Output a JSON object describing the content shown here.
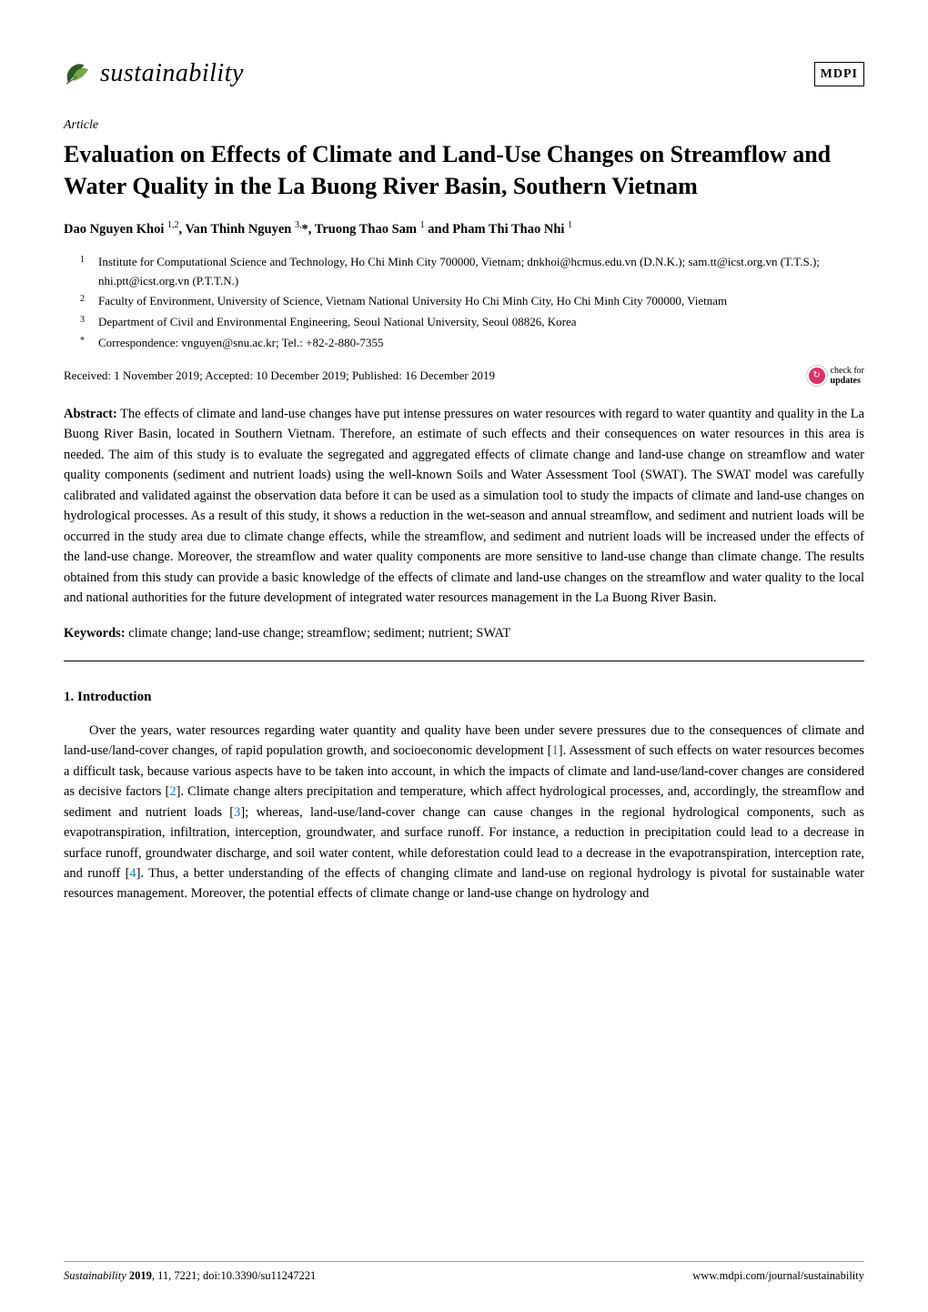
{
  "header": {
    "journal_name": "sustainability",
    "publisher_logo": "MDPI"
  },
  "article": {
    "type": "Article",
    "title": "Evaluation on Effects of Climate and Land-Use Changes on Streamflow and Water Quality in the La Buong River Basin, Southern Vietnam",
    "authors_html": "Dao Nguyen Khoi <sup>1,2</sup>, Van Thinh Nguyen <sup>3,</sup>*, Truong Thao Sam <sup>1</sup> and Pham Thi Thao Nhi <sup>1</sup>"
  },
  "affiliations": [
    {
      "num": "1",
      "text": "Institute for Computational Science and Technology, Ho Chi Minh City 700000, Vietnam; dnkhoi@hcmus.edu.vn (D.N.K.); sam.tt@icst.org.vn (T.T.S.); nhi.ptt@icst.org.vn (P.T.T.N.)"
    },
    {
      "num": "2",
      "text": "Faculty of Environment, University of Science, Vietnam National University Ho Chi Minh City, Ho Chi Minh City 700000, Vietnam"
    },
    {
      "num": "3",
      "text": "Department of Civil and Environmental Engineering, Seoul National University, Seoul 08826, Korea"
    },
    {
      "num": "*",
      "text": "Correspondence: vnguyen@snu.ac.kr; Tel.: +82-2-880-7355"
    }
  ],
  "dates": "Received: 1 November 2019; Accepted: 10 December 2019; Published: 16 December 2019",
  "check_updates": {
    "line1": "check for",
    "line2": "updates"
  },
  "abstract": {
    "label": "Abstract:",
    "text": " The effects of climate and land-use changes have put intense pressures on water resources with regard to water quantity and quality in the La Buong River Basin, located in Southern Vietnam. Therefore, an estimate of such effects and their consequences on water resources in this area is needed. The aim of this study is to evaluate the segregated and aggregated effects of climate change and land-use change on streamflow and water quality components (sediment and nutrient loads) using the well-known Soils and Water Assessment Tool (SWAT). The SWAT model was carefully calibrated and validated against the observation data before it can be used as a simulation tool to study the impacts of climate and land-use changes on hydrological processes. As a result of this study, it shows a reduction in the wet-season and annual streamflow, and sediment and nutrient loads will be occurred in the study area due to climate change effects, while the streamflow, and sediment and nutrient loads will be increased under the effects of the land-use change. Moreover, the streamflow and water quality components are more sensitive to land-use change than climate change. The results obtained from this study can provide a basic knowledge of the effects of climate and land-use changes on the streamflow and water quality to the local and national authorities for the future development of integrated water resources management in the La Buong River Basin."
  },
  "keywords": {
    "label": "Keywords:",
    "text": " climate change; land-use change; streamflow; sediment; nutrient; SWAT"
  },
  "section1": {
    "heading": "1. Introduction",
    "paragraph": "Over the years, water resources regarding water quantity and quality have been under severe pressures due to the consequences of climate and land-use/land-cover changes, of rapid population growth, and socioeconomic development [1]. Assessment of such effects on water resources becomes a difficult task, because various aspects have to be taken into account, in which the impacts of climate and land-use/land-cover changes are considered as decisive factors [2]. Climate change alters precipitation and temperature, which affect hydrological processes, and, accordingly, the streamflow and sediment and nutrient loads [3]; whereas, land-use/land-cover change can cause changes in the regional hydrological components, such as evapotranspiration, infiltration, interception, groundwater, and surface runoff. For instance, a reduction in precipitation could lead to a decrease in surface runoff, groundwater discharge, and soil water content, while deforestation could lead to a decrease in the evapotranspiration, interception rate, and runoff [4]. Thus, a better understanding of the effects of changing climate and land-use on regional hydrology is pivotal for sustainable water resources management. Moreover, the potential effects of climate change or land-use change on hydrology and"
  },
  "footer": {
    "left_italic": "Sustainability ",
    "left_bold": "2019",
    "left_rest": ", 11, 7221; doi:10.3390/su11247221",
    "right": "www.mdpi.com/journal/sustainability"
  },
  "colors": {
    "leaf_dark": "#2d5a2d",
    "leaf_light": "#7aa843",
    "ref_link": "#1a7abf",
    "check_circle": "#d6336c"
  }
}
